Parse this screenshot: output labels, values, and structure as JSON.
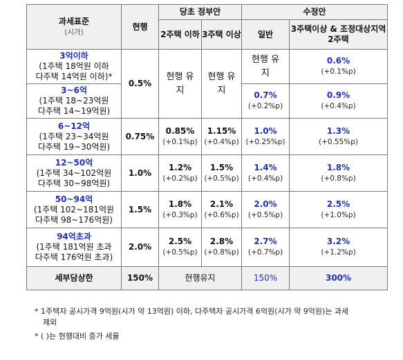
{
  "header": {
    "col_base": "과세표준",
    "col_base_sub": "(시가)",
    "col_current": "현행",
    "group_gov": "당초 정부안",
    "gov_sub1": "2주택 이하",
    "gov_sub2": "3주택 이상",
    "group_rev": "수정안",
    "rev_sub1": "일반",
    "rev_sub2": "3주택이상 & 조정대상지역 2주택"
  },
  "rows": [
    {
      "title": "3억이하",
      "detail1": "(1주택 18억원 이하",
      "detail2": "다주택 14억원 이하)",
      "rev1_text": "현행 유지",
      "rev2": "0.6%",
      "rev2_delta": "(+0.1%p)"
    },
    {
      "title": "3~6억",
      "detail1": "(1주택 18~23억원",
      "detail2": "다주택 14~19억원)",
      "rev1": "0.7%",
      "rev1_delta": "(+0.2%p)",
      "rev2": "0.9%",
      "rev2_delta": "(+0.4%p)"
    },
    {
      "title": "6~12억",
      "detail1": "(1주택 23~34억원",
      "detail2": "다주택 19~30억원)",
      "current": "0.75%",
      "gov1": "0.85%",
      "gov1_delta": "(+0.1%p)",
      "gov2": "1.15%",
      "gov2_delta": "(+0.4%p)",
      "rev1": "1.0%",
      "rev1_delta": "(+0.25%p)",
      "rev2": "1.3%",
      "rev2_delta": "(+0.55%p)"
    },
    {
      "title": "12~50억",
      "detail1": "(1주택 34~102억원",
      "detail2": "다주택 30~98억원)",
      "current": "1.0%",
      "gov1": "1.2%",
      "gov1_delta": "(+0.2%p)",
      "gov2": "1.5%",
      "gov2_delta": "(+0.5%p)",
      "rev1": "1.4%",
      "rev1_delta": "(+0.4%p)",
      "rev2": "1.8%",
      "rev2_delta": "(+0.8%p)"
    },
    {
      "title": "50~94억",
      "detail1": "(1주택 102~181억원",
      "detail2": "다주택 98~176억원)",
      "current": "1.5%",
      "gov1": "1.8%",
      "gov1_delta": "(+0.3%p)",
      "gov2": "2.1%",
      "gov2_delta": "(+0.6%p)",
      "rev1": "2.0%",
      "rev1_delta": "(+0.5%p)",
      "rev2": "2.5%",
      "rev2_delta": "(+1.0%p)"
    },
    {
      "title": "94억초과",
      "detail1": "(1주택 181억원 초과",
      "detail2": "다주택 176억원 초과)",
      "current": "2.0%",
      "gov1": "2.5%",
      "gov1_delta": "(+0.5%p)",
      "gov2": "2.8%",
      "gov2_delta": "(+0.8%p)",
      "rev1": "2.7%",
      "rev1_delta": "(+0.7%p)",
      "rev2": "3.2%",
      "rev2_delta": "(+1.2%p)"
    }
  ],
  "merged": {
    "current_first": "0.5%",
    "gov1_first": "현행 유지",
    "gov2_first": "현행 유지",
    "footnote_mark": "*"
  },
  "last_row": {
    "label": "세부담상한",
    "current": "150%",
    "gov": "현행유지",
    "rev1": "150%",
    "rev2": "300%"
  },
  "notes": {
    "note1_line1": "* 1주택자 공시가격 9억원(시가 약 13억원) 이하, 다주택자 공시가격 6억원(시가 약 9억원)는 과세",
    "note1_line2": "제외",
    "note2": "* (  )는 현행대비 증가 세율"
  },
  "colors": {
    "accent_blue": "#1f2fb8",
    "header_bg": "#f0f0f0",
    "border": "#777777"
  }
}
